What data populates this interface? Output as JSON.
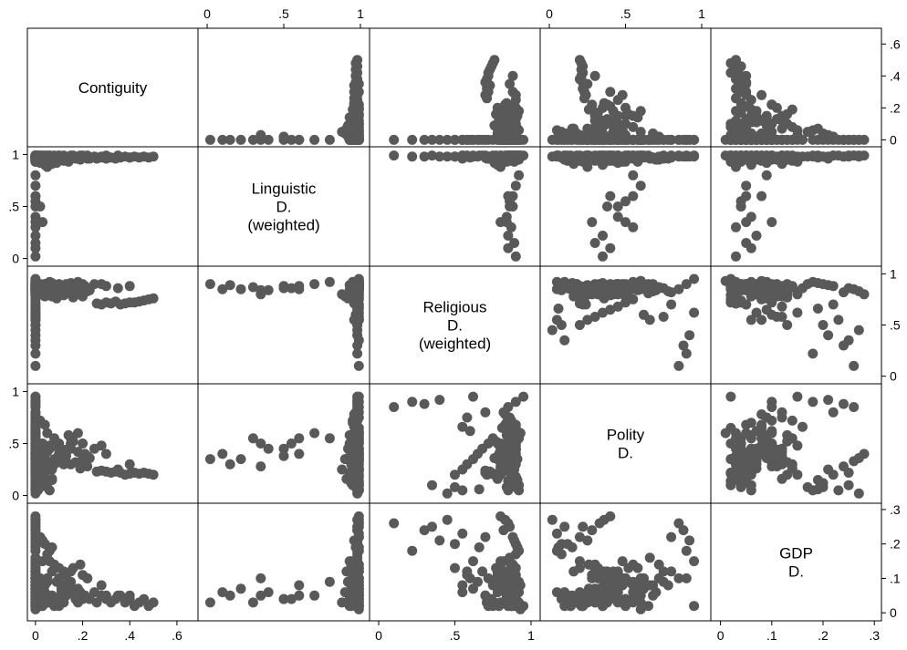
{
  "chart_data": {
    "type": "scatter_matrix",
    "variables": [
      {
        "key": "contiguity",
        "label_lines": [
          "Contiguity"
        ],
        "range": [
          -0.015,
          0.67
        ],
        "ticks": [
          {
            "v": 0,
            "t": "0"
          },
          {
            "v": 0.2,
            "t": ".2"
          },
          {
            "v": 0.4,
            "t": ".4"
          },
          {
            "v": 0.6,
            "t": ".6"
          }
        ]
      },
      {
        "key": "linguistic",
        "label_lines": [
          "Linguistic",
          "D.",
          "(weighted)"
        ],
        "range": [
          -0.03,
          1.03
        ],
        "ticks": [
          {
            "v": 0,
            "t": "0"
          },
          {
            "v": 0.5,
            "t": ".5"
          },
          {
            "v": 1,
            "t": "1"
          }
        ]
      },
      {
        "key": "religious",
        "label_lines": [
          "Religious",
          "D.",
          "(weighted)"
        ],
        "range": [
          -0.03,
          1.03
        ],
        "ticks": [
          {
            "v": 0,
            "t": "0"
          },
          {
            "v": 0.5,
            "t": ".5"
          },
          {
            "v": 1,
            "t": "1"
          }
        ]
      },
      {
        "key": "polity",
        "label_lines": [
          "Polity",
          "D."
        ],
        "range": [
          -0.03,
          1.03
        ],
        "ticks": [
          {
            "v": 0,
            "t": "0"
          },
          {
            "v": 0.5,
            "t": ".5"
          },
          {
            "v": 1,
            "t": "1"
          }
        ]
      },
      {
        "key": "gdp",
        "label_lines": [
          "GDP",
          "D."
        ],
        "range": [
          -0.01,
          0.305
        ],
        "ticks": [
          {
            "v": 0,
            "t": "0"
          },
          {
            "v": 0.1,
            "t": ".1"
          },
          {
            "v": 0.2,
            "t": ".2"
          },
          {
            "v": 0.3,
            "t": ".3"
          }
        ]
      }
    ],
    "marker_color": "#595959",
    "frame_color": "#000000",
    "grid": false,
    "points": [
      [
        0,
        0.96,
        0.84,
        0.25,
        0.03
      ],
      [
        0,
        0.95,
        0.9,
        0.3,
        0.05
      ],
      [
        0,
        0.97,
        0.82,
        0.45,
        0.07
      ],
      [
        0,
        0.94,
        0.86,
        0.12,
        0.04
      ],
      [
        0,
        0.98,
        0.91,
        0.35,
        0.02
      ],
      [
        0,
        0.93,
        0.78,
        0.5,
        0.09
      ],
      [
        0,
        0.96,
        0.88,
        0.2,
        0.06
      ],
      [
        0,
        0.99,
        0.93,
        0.6,
        0.08
      ],
      [
        0,
        0.97,
        0.8,
        0.28,
        0.11
      ],
      [
        0,
        0.95,
        0.85,
        0.38,
        0.03
      ],
      [
        0,
        0.98,
        0.89,
        0.15,
        0.05
      ],
      [
        0,
        0.94,
        0.83,
        0.42,
        0.12
      ],
      [
        0,
        0.96,
        0.87,
        0.55,
        0.04
      ],
      [
        0,
        0.99,
        0.9,
        0.33,
        0.07
      ],
      [
        0,
        0.93,
        0.79,
        0.22,
        0.02
      ],
      [
        0,
        0.97,
        0.86,
        0.48,
        0.1
      ],
      [
        0,
        0.95,
        0.92,
        0.1,
        0.06
      ],
      [
        0,
        0.98,
        0.81,
        0.65,
        0.08
      ],
      [
        0,
        0.94,
        0.88,
        0.3,
        0.14
      ],
      [
        0,
        0.96,
        0.84,
        0.4,
        0.05
      ],
      [
        0,
        0.97,
        0.9,
        0.18,
        0.03
      ],
      [
        0,
        0.99,
        0.86,
        0.52,
        0.09
      ],
      [
        0,
        0.95,
        0.83,
        0.26,
        0.07
      ],
      [
        0,
        0.93,
        0.89,
        0.44,
        0.04
      ],
      [
        0,
        0.98,
        0.8,
        0.36,
        0.12
      ],
      [
        0,
        0.96,
        0.91,
        0.58,
        0.06
      ],
      [
        0,
        0.94,
        0.85,
        0.14,
        0.02
      ],
      [
        0,
        0.97,
        0.87,
        0.47,
        0.08
      ],
      [
        0,
        0.95,
        0.82,
        0.32,
        0.1
      ],
      [
        0,
        0.99,
        0.88,
        0.24,
        0.05
      ],
      [
        0,
        0.99,
        0.55,
        0.05,
        0.23
      ],
      [
        0,
        0.98,
        0.5,
        0.08,
        0.2
      ],
      [
        0,
        0.99,
        0.35,
        0.1,
        0.25
      ],
      [
        0,
        0.98,
        0.22,
        0.9,
        0.18
      ],
      [
        0,
        0.99,
        0.1,
        0.85,
        0.26
      ],
      [
        0,
        0.98,
        0.62,
        0.95,
        0.15
      ],
      [
        0,
        0.99,
        0.7,
        0.8,
        0.22
      ],
      [
        0,
        0.98,
        0.45,
        0.02,
        0.27
      ],
      [
        0,
        0.99,
        0.58,
        0.75,
        0.12
      ],
      [
        0,
        0.98,
        0.3,
        0.88,
        0.24
      ],
      [
        0,
        0.99,
        0.66,
        0.06,
        0.19
      ],
      [
        0,
        0.98,
        0.4,
        0.92,
        0.21
      ],
      [
        0,
        0.7,
        0.9,
        0.6,
        0.05
      ],
      [
        0,
        0.6,
        0.85,
        0.55,
        0.08
      ],
      [
        0,
        0.5,
        0.88,
        0.45,
        0.04
      ],
      [
        0,
        0.35,
        0.8,
        0.5,
        0.1
      ],
      [
        0,
        0.1,
        0.85,
        0.4,
        0.06
      ],
      [
        0,
        0.02,
        0.9,
        0.35,
        0.03
      ],
      [
        0,
        0.8,
        0.92,
        0.55,
        0.09
      ],
      [
        0,
        0.99,
        0.9,
        0.65,
        0.02
      ],
      [
        0,
        0.99,
        0.93,
        0.6,
        0.01
      ],
      [
        0,
        0.99,
        0.95,
        0.95,
        0.02
      ],
      [
        0,
        0.99,
        0.9,
        0.9,
        0.1
      ],
      [
        0.01,
        0.98,
        0.88,
        0.4,
        0.05
      ],
      [
        0.02,
        0.97,
        0.86,
        0.3,
        0.07
      ],
      [
        0.03,
        0.95,
        0.84,
        0.5,
        0.04
      ],
      [
        0.02,
        0.92,
        0.8,
        0.45,
        0.09
      ],
      [
        0.04,
        0.9,
        0.78,
        0.35,
        0.06
      ],
      [
        0.05,
        0.88,
        0.8,
        0.25,
        0.03
      ],
      [
        0.2,
        0.99,
        0.9,
        0.5,
        0.04
      ],
      [
        0.25,
        0.98,
        0.9,
        0.45,
        0.06
      ],
      [
        0.3,
        0.99,
        0.88,
        0.4,
        0.05
      ],
      [
        0.08,
        0.99,
        0.85,
        0.3,
        0.04
      ],
      [
        0.15,
        0.99,
        0.91,
        0.55,
        0.06
      ],
      [
        0.28,
        0.98,
        0.9,
        0.48,
        0.08
      ],
      [
        0.12,
        0.99,
        0.8,
        0.35,
        0.07
      ],
      [
        0.35,
        0.99,
        0.86,
        0.25,
        0.05
      ],
      [
        0.18,
        0.98,
        0.92,
        0.6,
        0.03
      ],
      [
        0.05,
        0.99,
        0.89,
        0.42,
        0.09
      ],
      [
        0.22,
        0.99,
        0.84,
        0.38,
        0.1
      ],
      [
        0.1,
        0.98,
        0.87,
        0.5,
        0.02
      ],
      [
        0.4,
        0.97,
        0.88,
        0.3,
        0.05
      ],
      [
        0.5,
        0.98,
        0.76,
        0.2,
        0.03
      ],
      [
        0.48,
        0.97,
        0.75,
        0.21,
        0.02
      ],
      [
        0.46,
        0.98,
        0.74,
        0.22,
        0.04
      ],
      [
        0.44,
        0.97,
        0.73,
        0.21,
        0.03
      ],
      [
        0.42,
        0.98,
        0.72,
        0.22,
        0.02
      ],
      [
        0.4,
        0.97,
        0.72,
        0.21,
        0.04
      ],
      [
        0.38,
        0.98,
        0.71,
        0.2,
        0.03
      ],
      [
        0.36,
        0.97,
        0.7,
        0.22,
        0.05
      ],
      [
        0.34,
        0.96,
        0.73,
        0.23,
        0.04
      ],
      [
        0.32,
        0.97,
        0.71,
        0.22,
        0.03
      ],
      [
        0.3,
        0.96,
        0.72,
        0.23,
        0.04
      ],
      [
        0.28,
        0.97,
        0.7,
        0.24,
        0.05
      ],
      [
        0.26,
        0.96,
        0.71,
        0.23,
        0.03
      ],
      [
        0.1,
        0.99,
        0.86,
        0.45,
        0.1
      ],
      [
        0.12,
        0.98,
        0.82,
        0.38,
        0.12
      ],
      [
        0.15,
        0.97,
        0.84,
        0.5,
        0.09
      ],
      [
        0.18,
        0.96,
        0.8,
        0.42,
        0.07
      ],
      [
        0.2,
        0.97,
        0.78,
        0.35,
        0.11
      ],
      [
        0.22,
        0.96,
        0.83,
        0.28,
        0.1
      ],
      [
        0.1,
        0.95,
        0.8,
        0.32,
        0.13
      ],
      [
        0.08,
        0.96,
        0.87,
        0.55,
        0.14
      ],
      [
        0.12,
        0.94,
        0.79,
        0.4,
        0.08
      ],
      [
        0.15,
        0.98,
        0.88,
        0.3,
        0.12
      ],
      [
        0.05,
        0.97,
        0.85,
        0.6,
        0.1
      ],
      [
        0.06,
        0.93,
        0.82,
        0.48,
        0.15
      ],
      [
        0.09,
        0.92,
        0.76,
        0.36,
        0.09
      ],
      [
        0.13,
        0.95,
        0.9,
        0.44,
        0.11
      ],
      [
        0.16,
        0.99,
        0.77,
        0.52,
        0.13
      ],
      [
        0.03,
        0.94,
        0.8,
        0.2,
        0.15
      ],
      [
        0.04,
        0.96,
        0.83,
        0.68,
        0.08
      ],
      [
        0.02,
        0.98,
        0.86,
        0.72,
        0.1
      ],
      [
        0.07,
        0.91,
        0.78,
        0.16,
        0.12
      ],
      [
        0.14,
        0.93,
        0.84,
        0.58,
        0.09
      ],
      [
        0.19,
        0.99,
        0.87,
        0.26,
        0.14
      ],
      [
        0.11,
        0.97,
        0.81,
        0.34,
        0.07
      ],
      [
        0.02,
        0.99,
        0.9,
        0.1,
        0.02
      ],
      [
        0.03,
        0.98,
        0.86,
        0.15,
        0.03
      ],
      [
        0.01,
        0.99,
        0.88,
        0.12,
        0.05
      ],
      [
        0.02,
        0.97,
        0.84,
        0.08,
        0.04
      ],
      [
        0.04,
        0.99,
        0.9,
        0.18,
        0.03
      ],
      [
        0.01,
        0.98,
        0.85,
        0.05,
        0.06
      ],
      [
        0.03,
        0.99,
        0.87,
        0.14,
        0.02
      ],
      [
        0,
        0.99,
        0.75,
        0.55,
        0.08
      ],
      [
        0,
        0.98,
        0.72,
        0.5,
        0.1
      ],
      [
        0,
        0.99,
        0.68,
        0.45,
        0.12
      ],
      [
        0,
        0.98,
        0.65,
        0.4,
        0.09
      ],
      [
        0,
        0.99,
        0.62,
        0.35,
        0.07
      ],
      [
        0,
        0.98,
        0.58,
        0.3,
        0.11
      ],
      [
        0,
        0.99,
        0.55,
        0.25,
        0.06
      ],
      [
        0,
        0.98,
        0.5,
        0.2,
        0.13
      ],
      [
        0,
        0.97,
        0.6,
        0.62,
        0.1
      ],
      [
        0,
        0.96,
        0.55,
        0.66,
        0.08
      ],
      [
        0,
        0.95,
        0.84,
        0.7,
        0.06
      ],
      [
        0,
        0.96,
        0.86,
        0.75,
        0.09
      ],
      [
        0,
        0.97,
        0.82,
        0.8,
        0.12
      ],
      [
        0,
        0.98,
        0.85,
        0.85,
        0.1
      ],
      [
        0,
        0.99,
        0.88,
        0.62,
        0.07
      ],
      [
        0,
        0.97,
        0.9,
        0.68,
        0.05
      ],
      [
        0,
        0.95,
        0.87,
        0.72,
        0.14
      ],
      [
        0,
        0.96,
        0.83,
        0.78,
        0.08
      ],
      [
        0,
        0.98,
        0.86,
        0.66,
        0.16
      ],
      [
        0,
        0.99,
        0.9,
        0.58,
        0.13
      ],
      [
        0.06,
        0.99,
        0.92,
        0.05,
        0.18
      ],
      [
        0.04,
        0.98,
        0.9,
        0.12,
        0.2
      ],
      [
        0.02,
        0.99,
        0.88,
        0.2,
        0.22
      ],
      [
        0.05,
        0.98,
        0.9,
        0.08,
        0.17
      ],
      [
        0.07,
        0.97,
        0.91,
        0.15,
        0.19
      ],
      [
        0.03,
        0.96,
        0.89,
        0.25,
        0.21
      ],
      [
        0,
        0.6,
        0.88,
        0.4,
        0.05
      ],
      [
        0,
        0.55,
        0.86,
        0.5,
        0.04
      ],
      [
        0,
        0.4,
        0.84,
        0.45,
        0.06
      ],
      [
        0,
        0.3,
        0.87,
        0.55,
        0.03
      ],
      [
        0,
        0.22,
        0.85,
        0.35,
        0.07
      ],
      [
        0,
        0.15,
        0.89,
        0.3,
        0.05
      ],
      [
        0.02,
        0.5,
        0.86,
        0.38,
        0.04
      ],
      [
        0.03,
        0.35,
        0.84,
        0.28,
        0.05
      ],
      [
        0,
        0.99,
        0.85,
        0.33,
        0.26
      ],
      [
        0,
        0.98,
        0.82,
        0.28,
        0.24
      ],
      [
        0,
        0.99,
        0.8,
        0.4,
        0.28
      ],
      [
        0,
        0.98,
        0.86,
        0.22,
        0.25
      ],
      [
        0,
        0.99,
        0.83,
        0.36,
        0.27
      ],
      [
        0.05,
        0.96,
        0.88,
        0.3,
        0.03
      ],
      [
        0.07,
        0.95,
        0.85,
        0.25,
        0.05
      ],
      [
        0.09,
        0.97,
        0.86,
        0.35,
        0.04
      ],
      [
        0.11,
        0.96,
        0.84,
        0.42,
        0.06
      ],
      [
        0.13,
        0.95,
        0.87,
        0.38,
        0.05
      ],
      [
        0.15,
        0.97,
        0.83,
        0.45,
        0.07
      ],
      [
        0.17,
        0.96,
        0.86,
        0.32,
        0.04
      ],
      [
        0.19,
        0.95,
        0.85,
        0.28,
        0.06
      ],
      [
        0.21,
        0.97,
        0.88,
        0.4,
        0.05
      ],
      [
        0.23,
        0.96,
        0.84,
        0.36,
        0.04
      ],
      [
        0.06,
        0.99,
        0.9,
        0.45,
        0.03
      ],
      [
        0.08,
        0.98,
        0.88,
        0.35,
        0.02
      ],
      [
        0.1,
        0.99,
        0.9,
        0.4,
        0.04
      ],
      [
        0.12,
        0.98,
        0.87,
        0.3,
        0.03
      ]
    ]
  }
}
